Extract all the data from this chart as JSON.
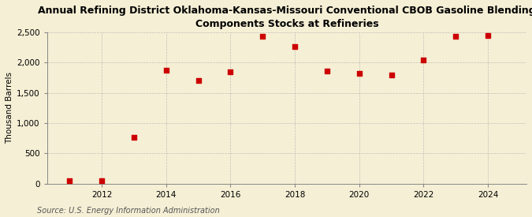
{
  "title": "Annual Refining District Oklahoma-Kansas-Missouri Conventional CBOB Gasoline Blending\nComponents Stocks at Refineries",
  "ylabel": "Thousand Barrels",
  "source": "Source: U.S. Energy Information Administration",
  "x_values": [
    2011,
    2012,
    2013,
    2014,
    2015,
    2016,
    2017,
    2018,
    2019,
    2020,
    2021,
    2022,
    2023,
    2024
  ],
  "y_values": [
    52,
    50,
    760,
    1870,
    1700,
    1850,
    2430,
    2270,
    1860,
    1820,
    1790,
    2040,
    2430,
    2450
  ],
  "marker_color": "#cc0000",
  "marker_size": 18,
  "background_color": "#f5efd5",
  "grid_color": "#aaaaaa",
  "ylim": [
    0,
    2500
  ],
  "yticks": [
    0,
    500,
    1000,
    1500,
    2000,
    2500
  ],
  "xlim": [
    2010.3,
    2025.2
  ],
  "xticks": [
    2012,
    2014,
    2016,
    2018,
    2020,
    2022,
    2024
  ],
  "title_fontsize": 9.0,
  "label_fontsize": 7.5,
  "tick_fontsize": 7.5,
  "source_fontsize": 7.0
}
